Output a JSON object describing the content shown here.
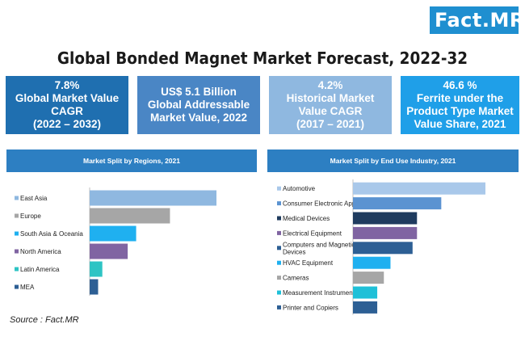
{
  "logo": "Fact.MR",
  "title": "Global Bonded Magnet Market Forecast, 2022-32",
  "kpis": [
    {
      "lines": [
        "7.8%",
        "Global Market Value",
        "CAGR",
        "(2022 – 2032)"
      ]
    },
    {
      "lines": [
        "US$ 5.1 Billion",
        "Global Addressable",
        "Market Value, 2022"
      ]
    },
    {
      "lines": [
        "4.2%",
        "Historical Market",
        "Value CAGR",
        "(2017 – 2021)"
      ]
    },
    {
      "lines": [
        "46.6 %",
        "Ferrite under the",
        "Product Type Market",
        "Value Share, 2021"
      ]
    }
  ],
  "source": "Source : Fact.MR",
  "chart_data": [
    {
      "type": "bar",
      "orientation": "horizontal",
      "title": "Market Split by Regions, 2021",
      "categories": [
        "East Asia",
        "Europe",
        "South Asia & Oceania",
        "North America",
        "Latin America",
        "MEA"
      ],
      "values": [
        30,
        19,
        11,
        9,
        3,
        2
      ],
      "colors": [
        "#8fb8e0",
        "#a6a6a6",
        "#1fb0f0",
        "#8064a2",
        "#2ec4c4",
        "#2d5f94"
      ]
    },
    {
      "type": "bar",
      "orientation": "horizontal",
      "title": "Market Split by End Use Industry, 2021",
      "categories": [
        "Automotive",
        "Consumer Electronic Appliances",
        "Medical Devices",
        "Electrical Equipment",
        "Computers and Magnetic Storage Devices",
        "HVAC Equipment",
        "Cameras",
        "Measurement Instruments",
        "Printer and Copiers"
      ],
      "values": [
        30,
        20,
        14.5,
        14.5,
        13.5,
        8.5,
        7,
        5.5,
        5.5
      ],
      "colors": [
        "#a9c8ea",
        "#5b93d1",
        "#1f3b5e",
        "#8064a2",
        "#2d5f94",
        "#1fb0f0",
        "#a6a6a6",
        "#1fc0d8",
        "#2d5f94"
      ]
    }
  ]
}
